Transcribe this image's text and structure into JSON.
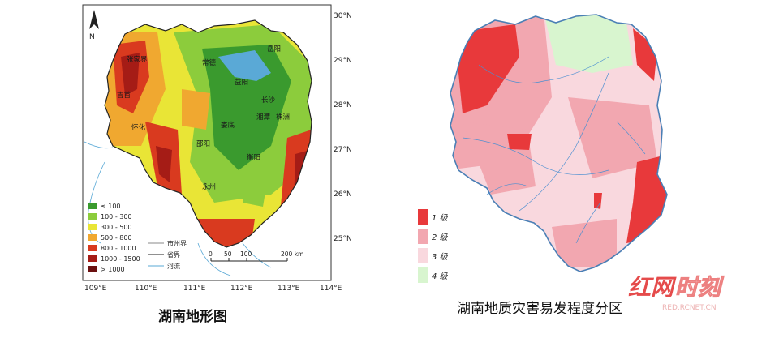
{
  "left_map": {
    "caption": "湖南地形图",
    "lat_labels": [
      "30°N",
      "29°N",
      "28°N",
      "27°N",
      "26°N",
      "25°N"
    ],
    "lon_labels": [
      "109°E",
      "110°E",
      "111°E",
      "112°E",
      "113°E",
      "114°E"
    ],
    "north_label": "N",
    "cities": [
      "张家界",
      "常德",
      "岳阳",
      "益阳",
      "吉首",
      "长沙",
      "怀化",
      "娄底",
      "湘潭",
      "株洲",
      "邵阳",
      "衡阳",
      "永州"
    ],
    "elevation_legend": [
      {
        "label": "≤ 100",
        "color": "#3a9a2e"
      },
      {
        "label": "100 - 300",
        "color": "#8ccc3c"
      },
      {
        "label": "300 - 500",
        "color": "#e9e536"
      },
      {
        "label": "500 - 800",
        "color": "#f0a830"
      },
      {
        "label": "800 - 1000",
        "color": "#d93a1f"
      },
      {
        "label": "1000 - 1500",
        "color": "#a51c16"
      },
      {
        "label": "> 1000",
        "color": "#6b1010"
      }
    ],
    "line_legend": [
      {
        "label": "市州界",
        "color": "#888888"
      },
      {
        "label": "省界",
        "color": "#222222"
      },
      {
        "label": "河流",
        "color": "#5aa9d6"
      }
    ],
    "scale_labels": [
      "0",
      "50",
      "100",
      "200 km"
    ]
  },
  "right_map": {
    "caption": "湖南地质灾害易发程度分区",
    "legend": [
      {
        "label": "1 级",
        "color": "#e8393b"
      },
      {
        "label": "2 级",
        "color": "#f2a7b0"
      },
      {
        "label": "3 级",
        "color": "#f9d8de"
      },
      {
        "label": "4 级",
        "color": "#d8f5cf"
      }
    ]
  },
  "watermark": {
    "brand": "红网时刻",
    "sub": "RED.RCNET.CN"
  }
}
